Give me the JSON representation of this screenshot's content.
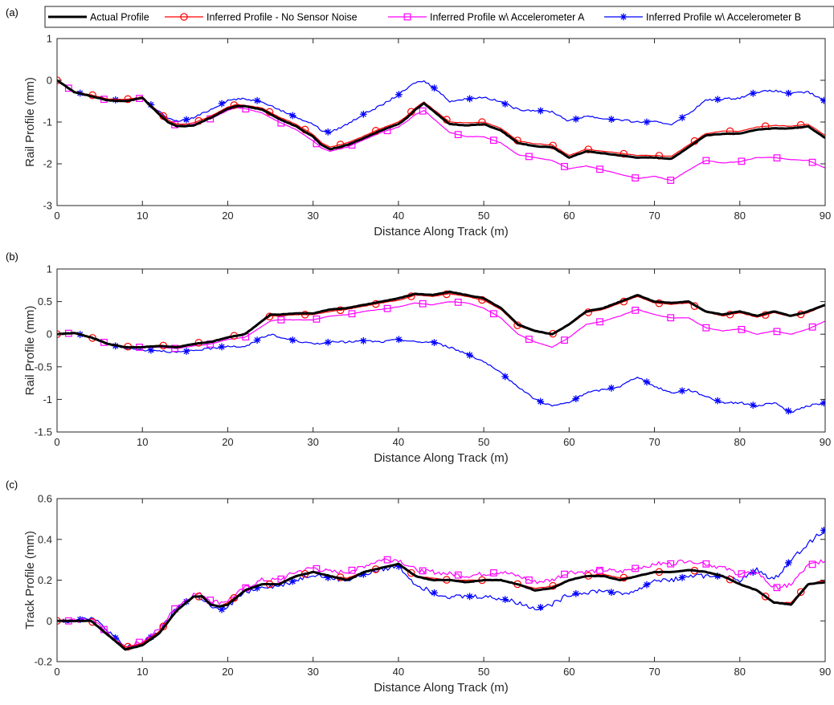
{
  "legend": {
    "entries": [
      {
        "label": "Actual Profile",
        "color": "#000000",
        "marker": "none"
      },
      {
        "label": "Inferred Profile - No Sensor Noise",
        "color": "#ff0000",
        "marker": "circle"
      },
      {
        "label": "Inferred Profile w\\ Accelerometer A",
        "color": "#ff00ff",
        "marker": "square"
      },
      {
        "label": "Inferred Profile w\\ Accelerometer B",
        "color": "#0000ff",
        "marker": "asterisk"
      }
    ],
    "placement": "top"
  },
  "chart_data": [
    {
      "panel": "(a)",
      "type": "line",
      "xlabel": "Distance Along Track (m)",
      "ylabel": "Rail Profile (mm)",
      "xlim": [
        0,
        90
      ],
      "ylim": [
        -3,
        1
      ],
      "xticks": [
        "0",
        "10",
        "20",
        "30",
        "40",
        "50",
        "60",
        "70",
        "80",
        "90"
      ],
      "yticks": [
        "-3",
        "-2",
        "-1",
        "0",
        "1"
      ],
      "grid": false,
      "x": [
        0,
        2,
        4,
        6,
        8,
        10,
        12,
        13,
        14,
        15,
        16,
        18,
        20,
        21,
        22,
        24,
        26,
        28,
        30,
        31,
        32,
        34,
        36,
        38,
        40,
        41,
        42,
        43,
        44,
        46,
        48,
        50,
        52,
        54,
        56,
        58,
        60,
        62,
        64,
        66,
        68,
        70,
        72,
        74,
        76,
        78,
        80,
        82,
        84,
        86,
        88,
        90
      ],
      "series": [
        {
          "name": "Actual Profile",
          "values": [
            0,
            -0.28,
            -0.38,
            -0.48,
            -0.5,
            -0.42,
            -0.82,
            -1.0,
            -1.1,
            -1.1,
            -1.08,
            -0.9,
            -0.68,
            -0.62,
            -0.62,
            -0.7,
            -0.92,
            -1.1,
            -1.35,
            -1.55,
            -1.65,
            -1.55,
            -1.38,
            -1.2,
            -1.05,
            -0.9,
            -0.7,
            -0.55,
            -0.72,
            -1.05,
            -1.08,
            -1.05,
            -1.2,
            -1.5,
            -1.58,
            -1.6,
            -1.85,
            -1.7,
            -1.75,
            -1.8,
            -1.85,
            -1.85,
            -1.88,
            -1.6,
            -1.32,
            -1.28,
            -1.28,
            -1.18,
            -1.15,
            -1.15,
            -1.1,
            -1.38
          ]
        },
        {
          "name": "Inferred Profile - No Sensor Noise",
          "values": [
            0,
            -0.27,
            -0.35,
            -0.45,
            -0.46,
            -0.4,
            -0.78,
            -0.95,
            -1.05,
            -1.05,
            -1.02,
            -0.86,
            -0.64,
            -0.58,
            -0.6,
            -0.66,
            -0.88,
            -1.05,
            -1.3,
            -1.5,
            -1.6,
            -1.5,
            -1.33,
            -1.15,
            -1.0,
            -0.85,
            -0.66,
            -0.52,
            -0.68,
            -1.0,
            -1.02,
            -1.0,
            -1.15,
            -1.45,
            -1.52,
            -1.55,
            -1.8,
            -1.65,
            -1.7,
            -1.75,
            -1.8,
            -1.8,
            -1.82,
            -1.55,
            -1.28,
            -1.22,
            -1.22,
            -1.12,
            -1.08,
            -1.1,
            -1.05,
            -1.32
          ]
        },
        {
          "name": "Inferred Profile w\\ Accelerometer A",
          "values": [
            0,
            -0.28,
            -0.38,
            -0.48,
            -0.5,
            -0.42,
            -0.82,
            -1.0,
            -1.08,
            -1.08,
            -1.05,
            -0.92,
            -0.72,
            -0.66,
            -0.68,
            -0.78,
            -1.0,
            -1.18,
            -1.45,
            -1.62,
            -1.7,
            -1.6,
            -1.42,
            -1.25,
            -1.12,
            -0.98,
            -0.82,
            -0.72,
            -0.9,
            -1.25,
            -1.35,
            -1.35,
            -1.5,
            -1.78,
            -1.85,
            -1.92,
            -2.12,
            -2.05,
            -2.15,
            -2.25,
            -2.35,
            -2.3,
            -2.4,
            -2.15,
            -1.92,
            -1.98,
            -1.95,
            -1.85,
            -1.85,
            -1.9,
            -1.92,
            -2.1
          ]
        },
        {
          "name": "Inferred Profile w\\ Accelerometer B",
          "values": [
            0,
            -0.28,
            -0.36,
            -0.46,
            -0.48,
            -0.42,
            -0.75,
            -0.92,
            -0.98,
            -0.95,
            -0.9,
            -0.7,
            -0.48,
            -0.45,
            -0.45,
            -0.5,
            -0.7,
            -0.88,
            -1.05,
            -1.2,
            -1.25,
            -1.05,
            -0.8,
            -0.6,
            -0.35,
            -0.2,
            -0.05,
            -0.02,
            -0.15,
            -0.5,
            -0.45,
            -0.4,
            -0.52,
            -0.7,
            -0.72,
            -0.75,
            -0.98,
            -0.85,
            -0.92,
            -0.95,
            -1.0,
            -1.0,
            -1.05,
            -0.8,
            -0.48,
            -0.45,
            -0.42,
            -0.28,
            -0.25,
            -0.32,
            -0.28,
            -0.5
          ]
        }
      ]
    },
    {
      "panel": "(b)",
      "type": "line",
      "xlabel": "Distance Along Track (m)",
      "ylabel": "Rail Profile (mm)",
      "xlim": [
        0,
        90
      ],
      "ylim": [
        -1.5,
        1
      ],
      "xticks": [
        "0",
        "10",
        "20",
        "30",
        "40",
        "50",
        "60",
        "70",
        "80",
        "90"
      ],
      "yticks": [
        "-1.5",
        "-1",
        "-0.5",
        "0",
        "0.5",
        "1"
      ],
      "grid": false,
      "x": [
        0,
        2,
        4,
        6,
        8,
        10,
        12,
        14,
        16,
        18,
        20,
        22,
        24,
        25,
        26,
        28,
        30,
        32,
        34,
        36,
        38,
        40,
        42,
        44,
        46,
        48,
        50,
        52,
        54,
        56,
        58,
        60,
        62,
        64,
        66,
        68,
        70,
        72,
        74,
        76,
        78,
        80,
        82,
        84,
        86,
        88,
        90
      ],
      "series": [
        {
          "name": "Actual Profile",
          "values": [
            0,
            0.02,
            -0.05,
            -0.15,
            -0.2,
            -0.2,
            -0.18,
            -0.2,
            -0.15,
            -0.12,
            -0.05,
            0.0,
            0.2,
            0.3,
            0.3,
            0.32,
            0.32,
            0.38,
            0.4,
            0.45,
            0.5,
            0.55,
            0.62,
            0.6,
            0.65,
            0.6,
            0.55,
            0.4,
            0.15,
            0.05,
            0.0,
            0.15,
            0.35,
            0.4,
            0.5,
            0.6,
            0.5,
            0.48,
            0.5,
            0.35,
            0.3,
            0.35,
            0.28,
            0.35,
            0.28,
            0.35,
            0.45
          ]
        },
        {
          "name": "Inferred Profile - No Sensor Noise",
          "values": [
            0,
            0.02,
            -0.05,
            -0.15,
            -0.19,
            -0.19,
            -0.17,
            -0.19,
            -0.14,
            -0.11,
            -0.04,
            0.0,
            0.19,
            0.28,
            0.28,
            0.3,
            0.3,
            0.35,
            0.38,
            0.43,
            0.48,
            0.52,
            0.6,
            0.58,
            0.62,
            0.58,
            0.52,
            0.38,
            0.13,
            0.04,
            0.0,
            0.14,
            0.33,
            0.38,
            0.48,
            0.58,
            0.48,
            0.46,
            0.48,
            0.34,
            0.28,
            0.33,
            0.26,
            0.33,
            0.27,
            0.33,
            0.44
          ]
        },
        {
          "name": "Inferred Profile w\\ Accelerometer A",
          "values": [
            0,
            0.02,
            -0.05,
            -0.15,
            -0.2,
            -0.2,
            -0.2,
            -0.22,
            -0.18,
            -0.15,
            -0.08,
            -0.05,
            0.12,
            0.2,
            0.22,
            0.22,
            0.22,
            0.28,
            0.3,
            0.35,
            0.38,
            0.42,
            0.48,
            0.45,
            0.5,
            0.48,
            0.4,
            0.25,
            0.0,
            -0.12,
            -0.2,
            -0.05,
            0.15,
            0.2,
            0.28,
            0.38,
            0.3,
            0.25,
            0.25,
            0.1,
            0.05,
            0.08,
            0.0,
            0.05,
            0.0,
            0.08,
            0.2
          ]
        },
        {
          "name": "Inferred Profile w\\ Accelerometer B",
          "values": [
            0,
            0.02,
            -0.05,
            -0.15,
            -0.22,
            -0.24,
            -0.25,
            -0.28,
            -0.25,
            -0.22,
            -0.18,
            -0.2,
            -0.05,
            0.0,
            -0.05,
            -0.1,
            -0.15,
            -0.12,
            -0.12,
            -0.1,
            -0.12,
            -0.08,
            -0.12,
            -0.12,
            -0.2,
            -0.3,
            -0.42,
            -0.6,
            -0.8,
            -1.0,
            -1.1,
            -1.05,
            -0.9,
            -0.85,
            -0.8,
            -0.65,
            -0.8,
            -0.9,
            -0.85,
            -0.95,
            -1.05,
            -1.05,
            -1.1,
            -1.05,
            -1.2,
            -1.1,
            -1.05
          ]
        }
      ]
    },
    {
      "panel": "(c)",
      "type": "line",
      "xlabel": "Distance Along Track (m)",
      "ylabel": "Track Profile (mm)",
      "xlim": [
        0,
        90
      ],
      "ylim": [
        -0.2,
        0.6
      ],
      "xticks": [
        "0",
        "10",
        "20",
        "30",
        "40",
        "50",
        "60",
        "70",
        "80",
        "90"
      ],
      "yticks": [
        "-0.2",
        "0",
        "0.2",
        "0.4",
        "0.6"
      ],
      "grid": false,
      "x": [
        0,
        2,
        4,
        6,
        8,
        10,
        12,
        14,
        16,
        17,
        18,
        19,
        20,
        22,
        24,
        26,
        28,
        30,
        32,
        34,
        36,
        38,
        40,
        42,
        44,
        46,
        48,
        50,
        52,
        54,
        56,
        58,
        60,
        62,
        64,
        66,
        68,
        70,
        72,
        74,
        76,
        78,
        80,
        82,
        84,
        86,
        88,
        90
      ],
      "series": [
        {
          "name": "Actual Profile",
          "values": [
            0,
            0.0,
            0.0,
            -0.07,
            -0.14,
            -0.12,
            -0.06,
            0.05,
            0.12,
            0.12,
            0.08,
            0.07,
            0.08,
            0.15,
            0.18,
            0.18,
            0.22,
            0.24,
            0.22,
            0.2,
            0.24,
            0.26,
            0.28,
            0.22,
            0.2,
            0.2,
            0.19,
            0.2,
            0.2,
            0.18,
            0.15,
            0.16,
            0.2,
            0.22,
            0.22,
            0.2,
            0.22,
            0.24,
            0.24,
            0.25,
            0.24,
            0.22,
            0.18,
            0.15,
            0.09,
            0.08,
            0.18,
            0.19
          ]
        },
        {
          "name": "Inferred Profile - No Sensor Noise",
          "values": [
            0,
            0.0,
            0.0,
            -0.07,
            -0.13,
            -0.11,
            -0.05,
            0.05,
            0.12,
            0.12,
            0.08,
            0.07,
            0.09,
            0.15,
            0.18,
            0.18,
            0.22,
            0.24,
            0.22,
            0.21,
            0.24,
            0.26,
            0.28,
            0.22,
            0.21,
            0.2,
            0.2,
            0.2,
            0.2,
            0.18,
            0.16,
            0.17,
            0.2,
            0.22,
            0.23,
            0.21,
            0.22,
            0.24,
            0.24,
            0.25,
            0.24,
            0.22,
            0.18,
            0.15,
            0.09,
            0.09,
            0.18,
            0.2
          ]
        },
        {
          "name": "Inferred Profile w\\ Accelerometer A",
          "values": [
            0,
            0.0,
            0.01,
            -0.06,
            -0.13,
            -0.1,
            -0.04,
            0.07,
            0.13,
            0.13,
            0.1,
            0.09,
            0.1,
            0.16,
            0.2,
            0.2,
            0.24,
            0.26,
            0.24,
            0.24,
            0.27,
            0.3,
            0.3,
            0.25,
            0.24,
            0.23,
            0.22,
            0.23,
            0.24,
            0.22,
            0.19,
            0.2,
            0.24,
            0.24,
            0.25,
            0.24,
            0.26,
            0.28,
            0.28,
            0.3,
            0.28,
            0.26,
            0.23,
            0.24,
            0.16,
            0.18,
            0.27,
            0.3
          ]
        },
        {
          "name": "Inferred Profile w\\ Accelerometer B",
          "values": [
            0,
            0.0,
            0.02,
            -0.05,
            -0.13,
            -0.11,
            -0.05,
            0.06,
            0.12,
            0.11,
            0.07,
            0.05,
            0.07,
            0.14,
            0.17,
            0.17,
            0.2,
            0.23,
            0.21,
            0.2,
            0.23,
            0.25,
            0.27,
            0.18,
            0.14,
            0.12,
            0.12,
            0.12,
            0.11,
            0.09,
            0.06,
            0.08,
            0.13,
            0.14,
            0.15,
            0.13,
            0.15,
            0.2,
            0.2,
            0.22,
            0.22,
            0.22,
            0.2,
            0.25,
            0.2,
            0.3,
            0.38,
            0.45
          ]
        }
      ]
    }
  ]
}
